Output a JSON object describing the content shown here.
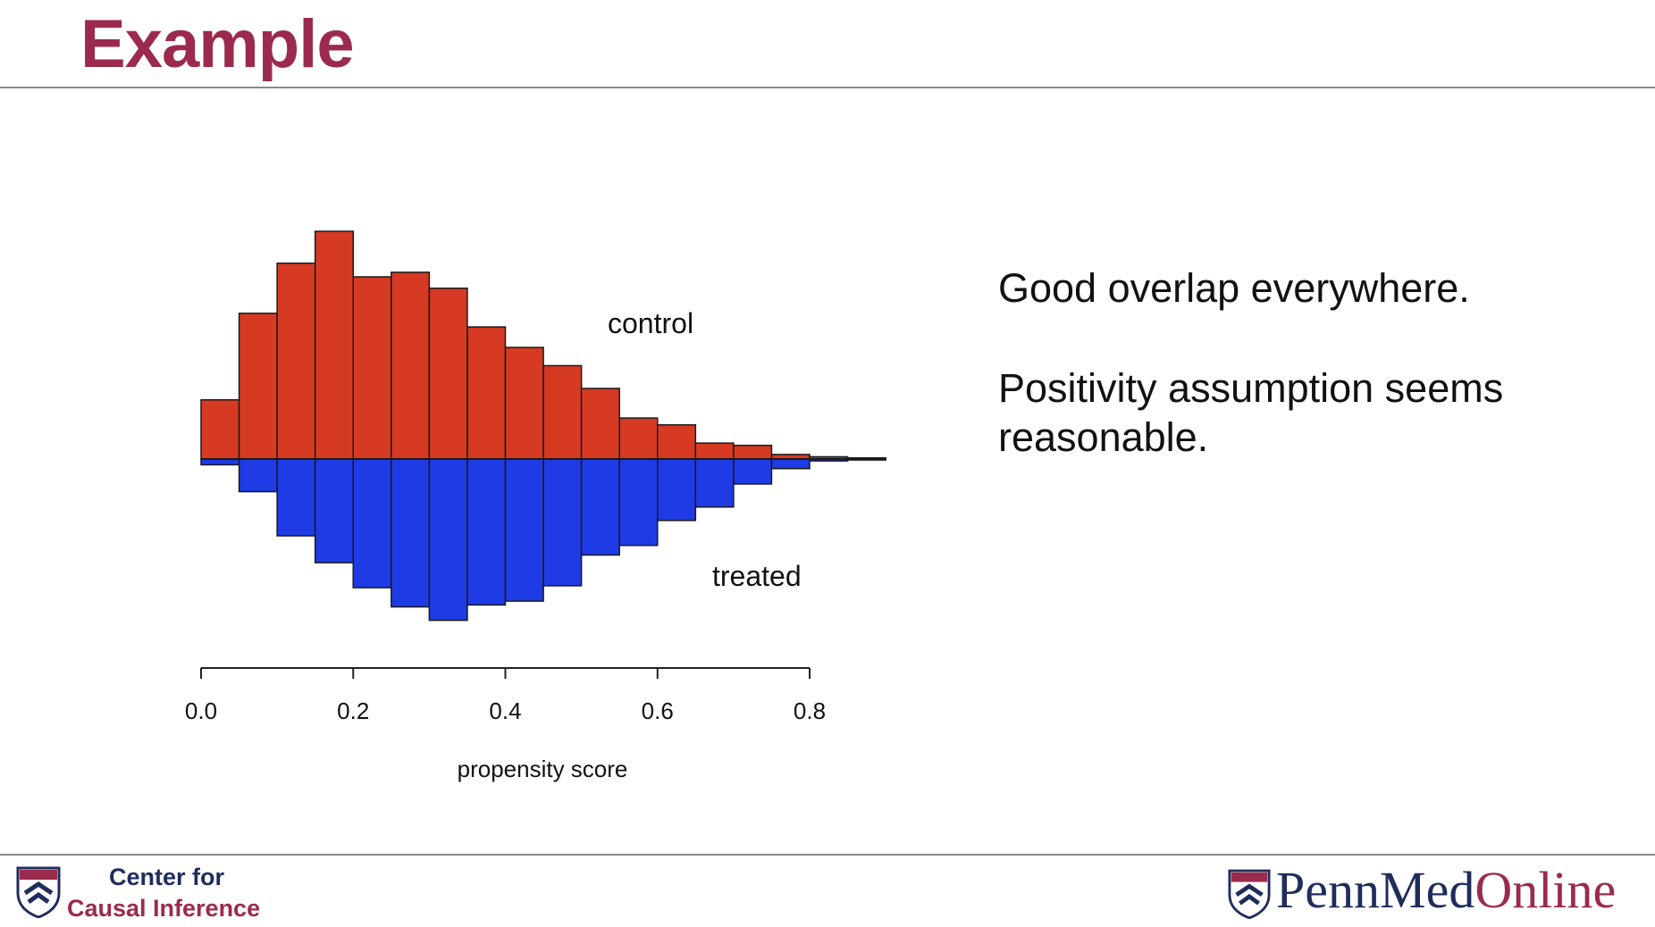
{
  "slide": {
    "title": "Example",
    "bullets": [
      "Good overlap everywhere.",
      "Positivity assumption seems reasonable."
    ]
  },
  "footer": {
    "left_line1": "Center for",
    "left_line2": "Causal Inference",
    "right_brand_penn": "Penn",
    "right_brand_med": "Med",
    "right_brand_online": "Online"
  },
  "colors": {
    "title": "#9b2a4c",
    "control": "#d63a22",
    "treated": "#1e3be6",
    "brand_navy": "#1f2d5c",
    "brand_red": "#9b2a4c"
  },
  "chart_data": {
    "type": "bar",
    "subtype": "mirrored-histogram",
    "xlabel": "propensity score",
    "ylabel": "",
    "xlim": [
      0,
      0.8
    ],
    "x_ticks": [
      0.0,
      0.2,
      0.4,
      0.6,
      0.8
    ],
    "x_tick_labels": [
      "0.0",
      "0.2",
      "0.4",
      "0.6",
      "0.8"
    ],
    "bin_width": 0.05,
    "bin_starts": [
      0.0,
      0.05,
      0.1,
      0.15,
      0.2,
      0.25,
      0.3,
      0.35,
      0.4,
      0.45,
      0.5,
      0.55,
      0.6,
      0.65,
      0.7,
      0.75,
      0.8,
      0.85
    ],
    "series": [
      {
        "name": "control",
        "direction": "up",
        "values": [
          0.26,
          0.64,
          0.86,
          1.0,
          0.8,
          0.82,
          0.75,
          0.58,
          0.49,
          0.41,
          0.31,
          0.18,
          0.15,
          0.07,
          0.06,
          0.02,
          0.01,
          0.005
        ]
      },
      {
        "name": "treated",
        "direction": "down",
        "values": [
          0.03,
          0.17,
          0.4,
          0.54,
          0.67,
          0.77,
          0.84,
          0.76,
          0.74,
          0.66,
          0.5,
          0.45,
          0.32,
          0.25,
          0.13,
          0.05,
          0.01,
          0.005
        ]
      }
    ],
    "grid": false,
    "legend": "none"
  }
}
